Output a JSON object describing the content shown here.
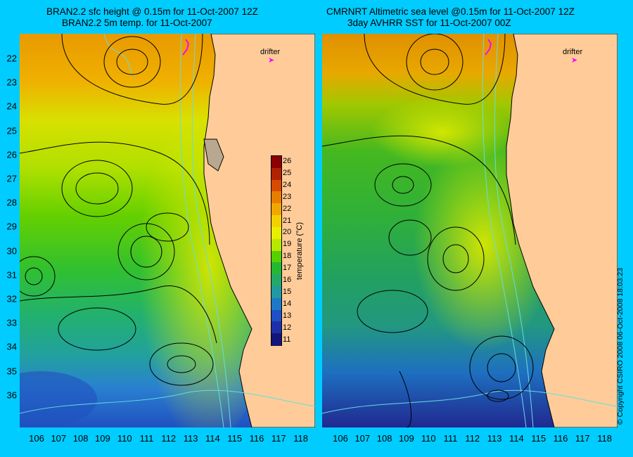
{
  "left_panel": {
    "title_line1": "BRAN2.2 sfc height @ 0.15m for 11-Oct-2007 12Z",
    "title_line2": "BRAN2.2 5m temp. for 11-Oct-2007",
    "drifter_label": "drifter"
  },
  "right_panel": {
    "title_line1": "CMRNRT Altimetric sea level  @0.15m  for 11-Oct-2007 12Z",
    "title_line2": "3day AVHRR SST for 11-Oct-2007 00Z",
    "drifter_label": "drifter"
  },
  "y_ticks": [
    "22",
    "23",
    "24",
    "25",
    "26",
    "27",
    "28",
    "29",
    "30",
    "31",
    "32",
    "33",
    "34",
    "35",
    "36"
  ],
  "x_ticks": [
    "106",
    "107",
    "108",
    "109",
    "110",
    "111",
    "112",
    "113",
    "114",
    "115",
    "116",
    "117",
    "118"
  ],
  "colorbar": {
    "title": "temperature (°C)",
    "ticks": [
      "26",
      "25",
      "24",
      "23",
      "22",
      "21",
      "20",
      "19",
      "18",
      "17",
      "16",
      "15",
      "14",
      "13",
      "12",
      "11"
    ],
    "colors": [
      "#8b0000",
      "#b22200",
      "#d84a00",
      "#e87d00",
      "#f0a800",
      "#f5d000",
      "#e8ee00",
      "#b8e800",
      "#55d000",
      "#22b832",
      "#22a868",
      "#1e9aa0",
      "#1e78c8",
      "#1e50c8",
      "#1e30a8",
      "#14147a"
    ]
  },
  "copyright": "© Copyright CSIRO 2008    06-Oct-2008 18:03:23",
  "colors": {
    "background": "#00ccff",
    "land": "#ffcc99",
    "contour": "#000000",
    "isobath": "#66dddd",
    "drifter": "#ff00ff"
  }
}
